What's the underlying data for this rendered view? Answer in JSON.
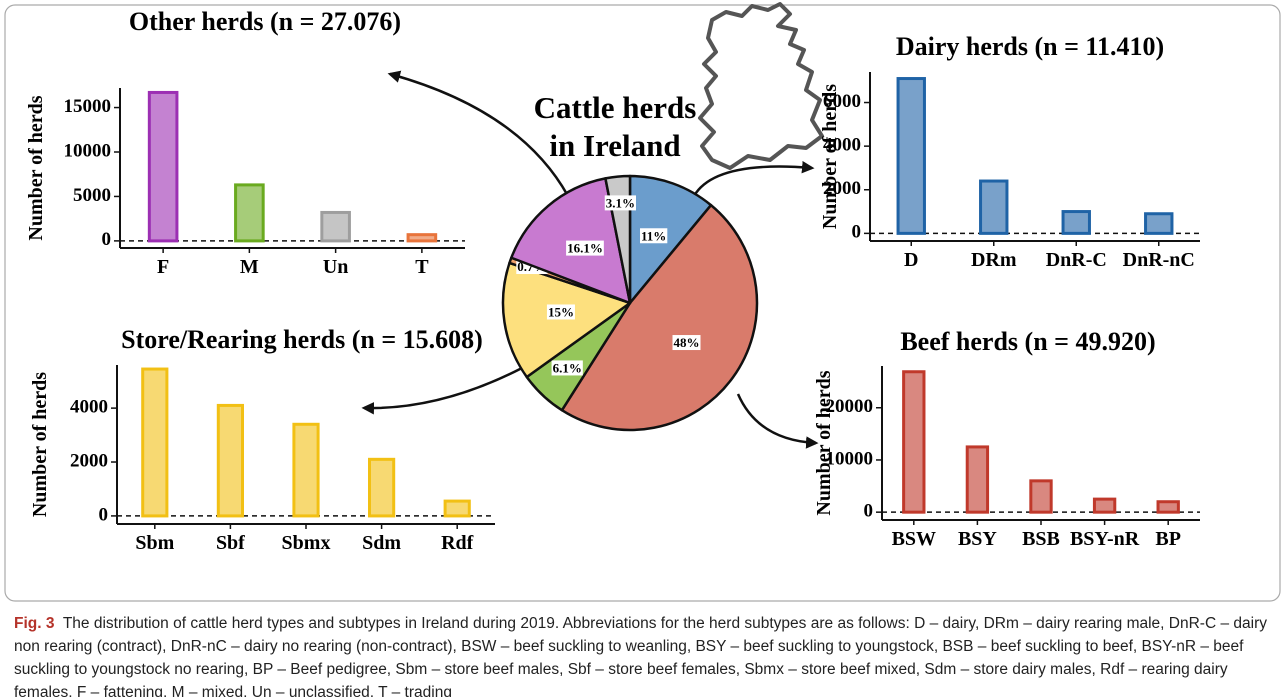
{
  "chart_data": [
    {
      "type": "pie",
      "title": [
        "Cattle herds",
        "in Ireland"
      ],
      "values": [
        11,
        48,
        6.1,
        15,
        0.7,
        16.1,
        3.1
      ],
      "value_labels": [
        "11%",
        "48%",
        "6.1%",
        "15%",
        "0.7%",
        "16.1%",
        "3.1%"
      ],
      "colors": [
        "#6b9dcc",
        "#d97b6b",
        "#95c65a",
        "#fde07e",
        "#f0a26b",
        "#c87ad0",
        "#c9c9c9"
      ]
    },
    {
      "type": "bar",
      "title": "Other herds (n = 27.076)",
      "ylabel": "Number of herds",
      "categories": [
        "F",
        "M",
        "Un",
        "T"
      ],
      "values": [
        16700,
        6300,
        3200,
        700
      ],
      "colors": [
        "#9c2fb3",
        "#6aaa1f",
        "#9e9e9e",
        "#e8743b"
      ],
      "ylim": [
        -800,
        17200
      ],
      "yticks": [
        0,
        5000,
        10000,
        15000
      ]
    },
    {
      "type": "bar",
      "title": "Dairy herds (n = 11.410)",
      "ylabel": "Number of herds",
      "categories": [
        "D",
        "DRm",
        "DnR-C",
        "DnR-nC"
      ],
      "values": [
        7100,
        2400,
        1000,
        900
      ],
      "color": "#1f63a6",
      "ylim": [
        -350,
        7400
      ],
      "yticks": [
        0,
        2000,
        4000,
        6000
      ]
    },
    {
      "type": "bar",
      "title": "Store/Rearing herds (n = 15.608)",
      "ylabel": "Number of herds",
      "categories": [
        "Sbm",
        "Sbf",
        "Sbmx",
        "Sdm",
        "Rdf"
      ],
      "values": [
        5450,
        4100,
        3400,
        2100,
        550
      ],
      "color": "#f2c014",
      "ylim": [
        -300,
        5600
      ],
      "yticks": [
        0,
        2000,
        4000
      ]
    },
    {
      "type": "bar",
      "title": "Beef herds (n = 49.920)",
      "ylabel": "Number of herds",
      "categories": [
        "BSW",
        "BSY",
        "BSB",
        "BSY-nR",
        "BP"
      ],
      "values": [
        26900,
        12500,
        6000,
        2500,
        2000
      ],
      "color": "#c0392b",
      "ylim": [
        -1500,
        28000
      ],
      "yticks": [
        0,
        10000,
        20000
      ]
    }
  ],
  "caption": {
    "label": "Fig. 3",
    "text": "The distribution of cattle herd types and subtypes in Ireland during 2019. Abbreviations for the herd subtypes are as follows: D – dairy, DRm – dairy rearing male, DnR-C – dairy non rearing (contract), DnR-nC – dairy no rearing (non-contract), BSW – beef suckling to weanling, BSY – beef suckling to youngstock, BSB – beef suckling to beef, BSY-nR – beef suckling to youngstock no rearing, BP – Beef pedigree, Sbm – store beef males, Sbf – store beef females, Sbmx – store beef mixed, Sdm – store dairy males, Rdf – rearing dairy females, F – fattening, M – mixed, Un – unclassified, T – trading"
  }
}
